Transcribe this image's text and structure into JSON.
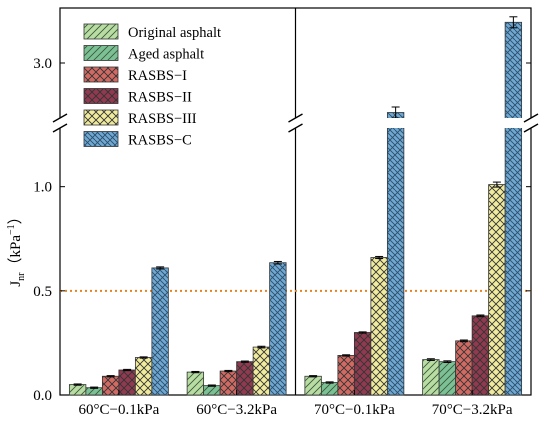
{
  "chart_data": {
    "type": "bar",
    "title": "",
    "xlabel": "",
    "ylabel": "J",
    "ylabel_sub": "nr",
    "ylabel_unit": "（kPa",
    "ylabel_unit_sup": "−1",
    "ylabel_unit_close": "）",
    "categories": [
      "60°C−0.1kPa",
      "60°C−3.2kPa",
      "70°C−0.1kPa",
      "70°C−3.2kPa"
    ],
    "series": [
      {
        "name": "Original asphalt",
        "values": [
          0.05,
          0.11,
          0.09,
          0.17
        ],
        "errors": [
          0.003,
          0.003,
          0.003,
          0.004
        ],
        "color": "#b9dca3",
        "pattern": "diag"
      },
      {
        "name": "Aged asphalt",
        "values": [
          0.035,
          0.045,
          0.06,
          0.16
        ],
        "errors": [
          0.003,
          0.003,
          0.003,
          0.004
        ],
        "color": "#7cc196",
        "pattern": "diag"
      },
      {
        "name": "RASBS−I",
        "values": [
          0.09,
          0.115,
          0.19,
          0.26
        ],
        "errors": [
          0.003,
          0.003,
          0.003,
          0.004
        ],
        "color": "#d06a63",
        "pattern": "cross"
      },
      {
        "name": "RASBS−II",
        "values": [
          0.12,
          0.16,
          0.3,
          0.38
        ],
        "errors": [
          0.003,
          0.003,
          0.003,
          0.004
        ],
        "color": "#8f3a50",
        "pattern": "cross"
      },
      {
        "name": "RASBS−III",
        "values": [
          0.18,
          0.23,
          0.66,
          1.01
        ],
        "errors": [
          0.003,
          0.004,
          0.005,
          0.012
        ],
        "color": "#efea9d",
        "pattern": "cross"
      },
      {
        "name": "RASBS−C",
        "values": [
          0.61,
          0.635,
          2.55,
          3.37
        ],
        "errors": [
          0.005,
          0.006,
          0.05,
          0.05
        ],
        "color": "#70a8d1",
        "pattern": "brick"
      }
    ],
    "y_axis": {
      "lower_range": [
        0,
        1.2
      ],
      "upper_range": [
        2.5,
        3.5
      ],
      "tick_labels": [
        "0.0",
        "0.5",
        "1.0",
        "3.0"
      ],
      "tick_values": [
        0,
        0.5,
        1.0,
        3.0
      ],
      "broken": true
    },
    "reference_line": {
      "y": 0.5,
      "style": "dotted",
      "color": "#e8821e"
    },
    "group_divider_after_category": 1,
    "legend_position": "top-left",
    "grid": false
  }
}
